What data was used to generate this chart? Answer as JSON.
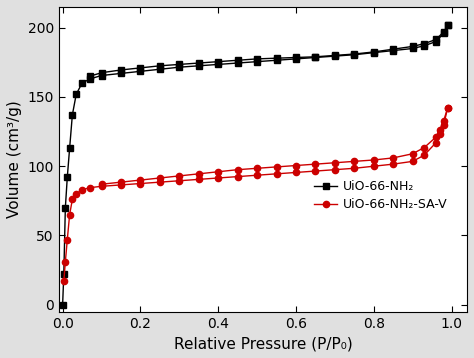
{
  "black_adsorption_x": [
    0.0,
    0.003,
    0.007,
    0.012,
    0.018,
    0.025,
    0.035,
    0.05,
    0.07,
    0.1,
    0.15,
    0.2,
    0.25,
    0.3,
    0.35,
    0.4,
    0.45,
    0.5,
    0.55,
    0.6,
    0.65,
    0.7,
    0.75,
    0.8,
    0.85,
    0.9,
    0.93,
    0.96,
    0.98,
    0.99
  ],
  "black_adsorption_y": [
    0.0,
    22.0,
    70.0,
    92.0,
    113.0,
    137.0,
    152.0,
    160.0,
    163.0,
    165.5,
    167.0,
    168.5,
    170.0,
    171.5,
    172.5,
    173.5,
    174.5,
    175.5,
    176.5,
    177.5,
    178.5,
    179.5,
    180.5,
    182.0,
    183.5,
    185.0,
    187.0,
    190.0,
    196.0,
    202.0
  ],
  "black_desorption_x": [
    0.99,
    0.98,
    0.96,
    0.93,
    0.9,
    0.85,
    0.8,
    0.75,
    0.7,
    0.65,
    0.6,
    0.55,
    0.5,
    0.45,
    0.4,
    0.35,
    0.3,
    0.25,
    0.2,
    0.15,
    0.1,
    0.07
  ],
  "black_desorption_y": [
    202.0,
    197.0,
    191.5,
    188.5,
    186.5,
    184.5,
    182.5,
    181.0,
    180.0,
    179.0,
    178.5,
    178.0,
    177.5,
    176.5,
    175.5,
    174.5,
    173.5,
    172.5,
    171.0,
    169.5,
    167.5,
    165.0
  ],
  "red_adsorption_x": [
    0.003,
    0.007,
    0.012,
    0.018,
    0.025,
    0.035,
    0.05,
    0.07,
    0.1,
    0.15,
    0.2,
    0.25,
    0.3,
    0.35,
    0.4,
    0.45,
    0.5,
    0.55,
    0.6,
    0.65,
    0.7,
    0.75,
    0.8,
    0.85,
    0.9,
    0.93,
    0.96,
    0.97,
    0.98,
    0.99
  ],
  "red_adsorption_y": [
    17.0,
    31.0,
    47.0,
    65.0,
    76.0,
    80.0,
    83.0,
    84.5,
    85.5,
    86.5,
    87.5,
    88.5,
    89.5,
    90.5,
    91.5,
    92.5,
    93.5,
    94.5,
    95.5,
    96.5,
    97.5,
    98.5,
    100.0,
    101.5,
    103.5,
    108.0,
    117.0,
    123.0,
    130.0,
    142.0
  ],
  "red_desorption_x": [
    0.99,
    0.98,
    0.97,
    0.96,
    0.93,
    0.9,
    0.85,
    0.8,
    0.75,
    0.7,
    0.65,
    0.6,
    0.55,
    0.5,
    0.45,
    0.4,
    0.35,
    0.3,
    0.25,
    0.2,
    0.15,
    0.1
  ],
  "red_desorption_y": [
    142.0,
    133.0,
    126.5,
    121.0,
    113.5,
    109.0,
    106.0,
    104.5,
    103.5,
    102.5,
    101.5,
    100.5,
    99.5,
    98.5,
    97.5,
    96.0,
    94.5,
    93.0,
    91.5,
    90.0,
    88.5,
    87.0
  ],
  "black_color": "#000000",
  "red_color": "#cc0000",
  "xlabel": "Relative Pressure (P/P₀)",
  "ylabel": "Volume (cm³/g)",
  "xlim": [
    -0.01,
    1.04
  ],
  "ylim": [
    -5,
    215
  ],
  "yticks": [
    0,
    50,
    100,
    150,
    200
  ],
  "xticks": [
    0.0,
    0.2,
    0.4,
    0.6,
    0.8,
    1.0
  ],
  "legend_black": "UiO-66-NH₂",
  "legend_red": "UiO-66-NH₂-SA-V",
  "marker_black": "s",
  "marker_red": "o",
  "markersize": 4.5,
  "linewidth": 1.0,
  "figsize": [
    4.74,
    3.58
  ],
  "dpi": 100,
  "fig_facecolor": "#e0e0e0",
  "axes_facecolor": "#ffffff",
  "label_fontsize": 11,
  "tick_fontsize": 10,
  "legend_fontsize": 9
}
